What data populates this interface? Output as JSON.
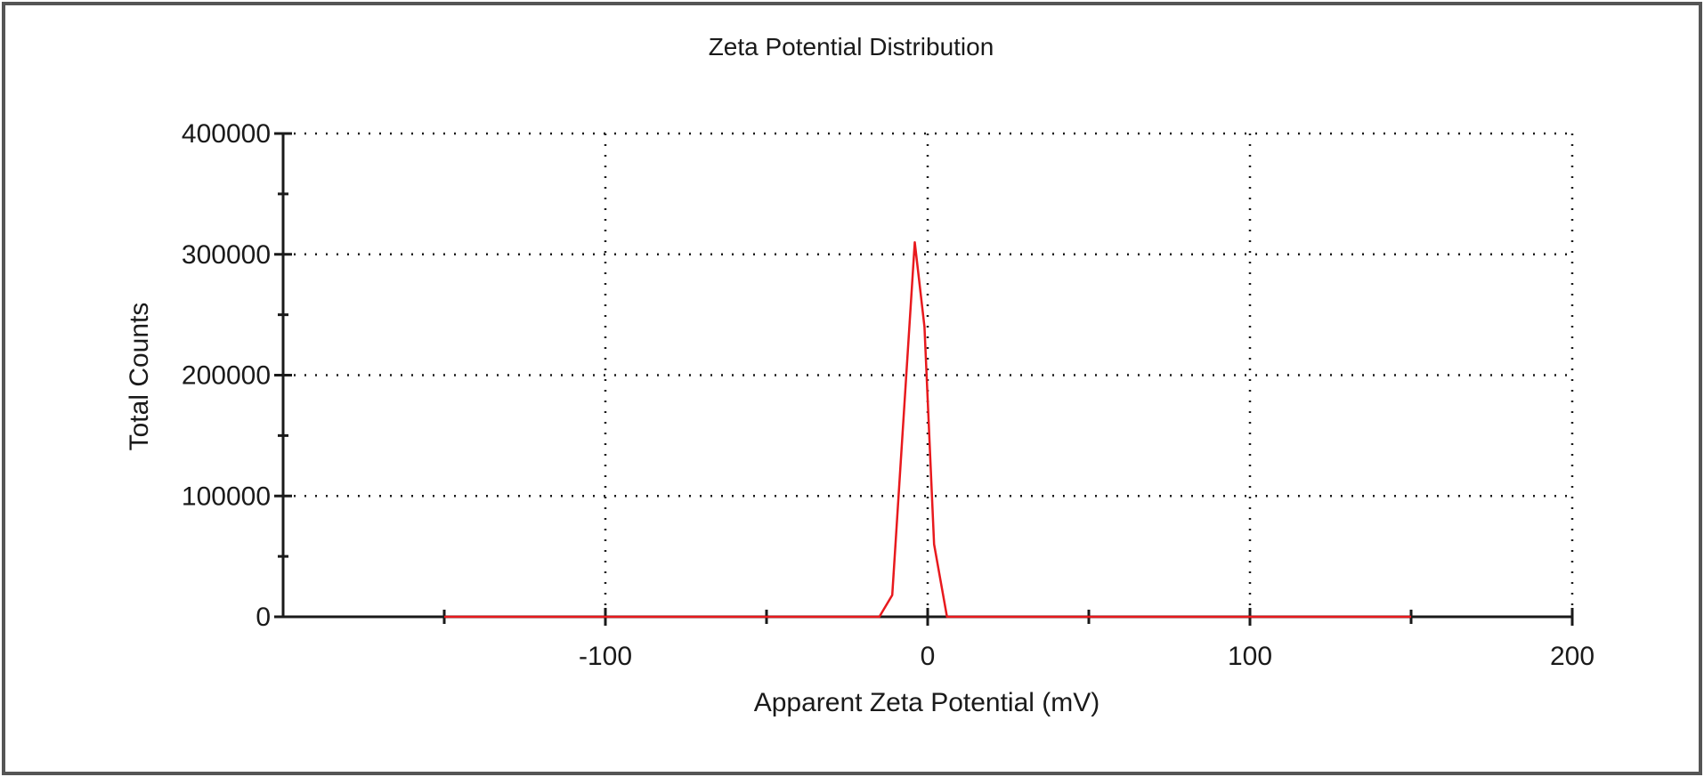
{
  "chart_data": {
    "type": "line",
    "title": "Zeta Potential Distribution",
    "xlabel": "Apparent Zeta Potential (mV)",
    "ylabel": "Total Counts",
    "xlim": [
      -200,
      200
    ],
    "ylim": [
      0,
      400000
    ],
    "x_ticks": [
      -100,
      0,
      100,
      200
    ],
    "x_tick_labels": [
      "-100",
      "0",
      "100",
      "200"
    ],
    "x_minor_ticks": [
      -150,
      -50,
      50,
      150
    ],
    "y_ticks": [
      0,
      100000,
      200000,
      300000,
      400000
    ],
    "y_tick_labels": [
      "0",
      "100000",
      "200000",
      "300000",
      "400000"
    ],
    "y_minor_ticks": [
      50000,
      150000,
      250000,
      350000
    ],
    "grid": true,
    "legend": "none",
    "colors": {
      "series": "#e8191d",
      "axis": "#1a1a1a"
    },
    "series": [
      {
        "x": [
          -150,
          -100,
          -50,
          -15,
          -11,
          -4,
          -1,
          2,
          6,
          50,
          100,
          150
        ],
        "y": [
          0,
          0,
          0,
          0,
          18000,
          310000,
          240000,
          60000,
          0,
          0,
          0,
          0
        ]
      }
    ]
  }
}
